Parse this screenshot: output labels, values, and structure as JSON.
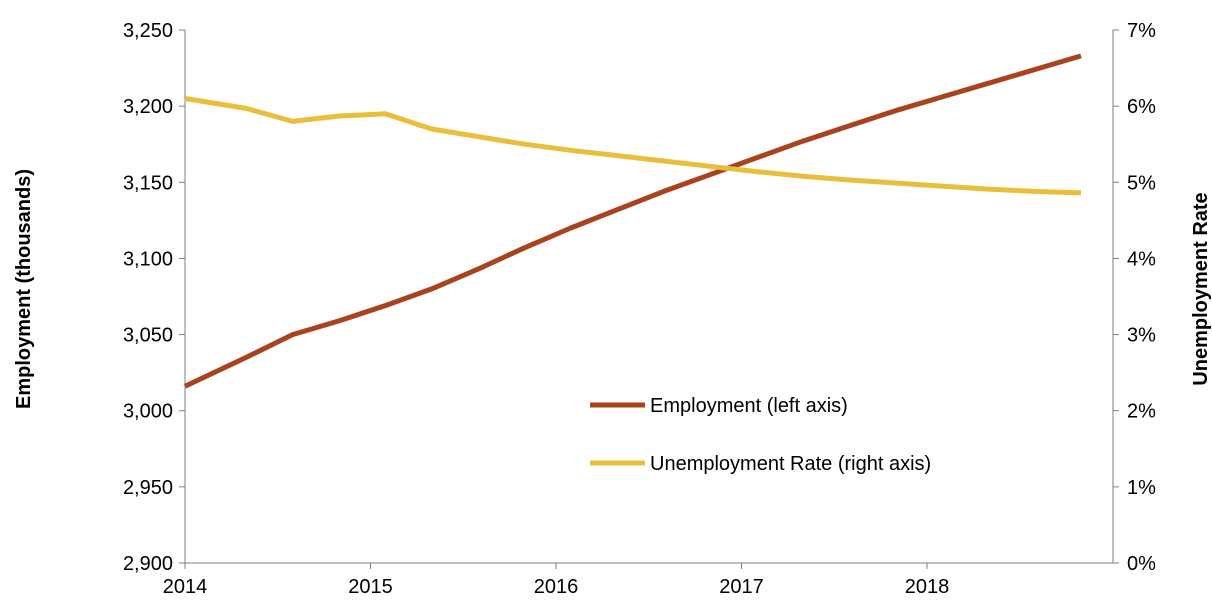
{
  "chart_data": {
    "type": "line",
    "title": "",
    "x_ticks": [
      "2014",
      "2015",
      "2016",
      "2017",
      "2018"
    ],
    "y_left": {
      "label": "Employment (thousands)",
      "min": 2900,
      "max": 3250,
      "ticks": [
        "2,900",
        "2,950",
        "3,000",
        "3,050",
        "3,100",
        "3,150",
        "3,200",
        "3,250"
      ]
    },
    "y_right": {
      "label": "Unemployment Rate",
      "min": 0,
      "max": 7,
      "ticks": [
        "0%",
        "1%",
        "2%",
        "3%",
        "4%",
        "5%",
        "6%",
        "7%"
      ]
    },
    "legend_position": "lower-right",
    "series": [
      {
        "name": "Employment (left axis)",
        "axis": "left",
        "color": "#A9431E",
        "x": [
          2014.0,
          2014.33,
          2014.58,
          2014.83,
          2015.08,
          2015.33,
          2015.58,
          2015.83,
          2016.08,
          2016.33,
          2016.58,
          2016.83,
          2017.08,
          2017.33,
          2017.58,
          2017.83,
          2018.08,
          2018.33,
          2018.58,
          2018.83
        ],
        "values": [
          3016,
          3035,
          3050,
          3059,
          3069,
          3080,
          3093,
          3107,
          3120,
          3132,
          3144,
          3155,
          3166,
          3177,
          3187,
          3197,
          3206,
          3215,
          3224,
          3233
        ]
      },
      {
        "name": "Unemployment Rate (right axis)",
        "axis": "right",
        "color": "#E9BE3A",
        "x": [
          2014.0,
          2014.33,
          2014.58,
          2014.83,
          2015.08,
          2015.33,
          2015.58,
          2015.83,
          2016.08,
          2016.33,
          2016.58,
          2016.83,
          2017.08,
          2017.33,
          2017.58,
          2017.83,
          2018.08,
          2018.33,
          2018.58,
          2018.83
        ],
        "values": [
          6.1,
          5.97,
          5.8,
          5.87,
          5.9,
          5.7,
          5.6,
          5.5,
          5.42,
          5.35,
          5.28,
          5.21,
          5.14,
          5.08,
          5.03,
          4.99,
          4.95,
          4.91,
          4.88,
          4.86
        ]
      }
    ]
  }
}
